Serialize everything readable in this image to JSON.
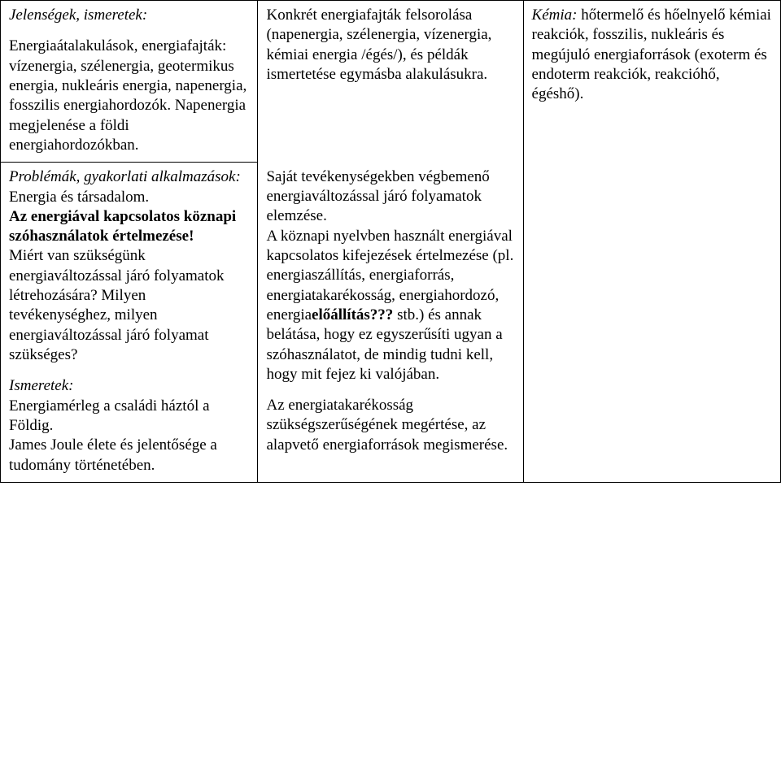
{
  "row1": {
    "col1": {
      "p1": "Jelenségek, ismeretek:",
      "p2": "Energiaátalakulások, energiafajták: vízenergia, szélenergia, geotermikus energia, nukleáris energia, napenergia, fosszilis energiahordozók. Napenergia megjelenése a földi energiahordozókban."
    },
    "col2": {
      "p1": " Konkrét energiafajták felsorolása (napenergia, szélenergia, vízenergia, kémiai energia /égés/), és példák ismertetése egymásba alakulásukra."
    },
    "col3": {
      "p1_a": "Kémia:",
      "p1_b": " hőtermelő és hőelnyelő kémiai reakciók, fosszilis, nukleáris és megújuló energiaforrások (exoterm és endoterm reakciók, reakcióhő, égéshő)."
    }
  },
  "row2": {
    "col1": {
      "p1": "Problémák, gyakorlati alkalmazások:",
      "p2a": "Energia és társadalom.",
      "p2b": "Az energiával kapcsolatos köznapi szóhasználatok értelmezése!",
      "p2c": "Miért van szükségünk energiaváltozással járó folyamatok létrehozására? Milyen tevékenységhez, milyen energiaváltozással járó folyamat szükséges?",
      "p3_lead": "Ismeretek:",
      "p3a": "Energiamérleg a családi háztól a Földig.",
      "p3b": "James Joule élete és jelentősége a tudomány történetében."
    },
    "col2": {
      "p1a": "Saját tevékenységekben végbemenő energiaváltozással járó folyamatok elemzése.",
      "p1b_a": "A köznapi nyelvben használt energiával kapcsolatos kifejezések értelmezése (pl. energiaszállítás, energiaforrás, energiatakarékosság, energiahordozó, energia",
      "p1b_bold": "előállítás???",
      "p1b_b": " stb.) és annak belátása, hogy ez egyszerűsíti ugyan a szóhasználatot, de mindig tudni kell, hogy mit fejez ki valójában.",
      "p2": "Az energiatakarékosság szükségszerűségének megértése, az alapvető energiaforrások megismerése."
    }
  }
}
